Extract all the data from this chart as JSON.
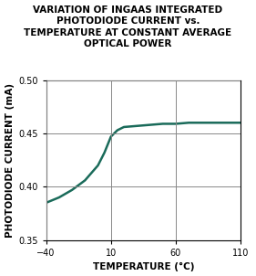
{
  "title_lines": [
    "VARIATION OF INGAAS INTEGRATED",
    "PHOTODIODE CURRENT vs.",
    "TEMPERATURE AT CONSTANT AVERAGE",
    "OPTICAL POWER"
  ],
  "xlabel": "TEMPERATURE (°C)",
  "ylabel": "PHOTODIODE CURRENT (mA)",
  "xlim": [
    -40,
    110
  ],
  "ylim": [
    0.35,
    0.5
  ],
  "xticks": [
    -40,
    10,
    60,
    110
  ],
  "yticks": [
    0.35,
    0.4,
    0.45,
    0.5
  ],
  "curve_color": "#1a6b5a",
  "curve_x": [
    -40,
    -30,
    -20,
    -10,
    0,
    5,
    10,
    15,
    20,
    30,
    40,
    50,
    60,
    70,
    80,
    90,
    100,
    110
  ],
  "curve_y": [
    0.385,
    0.39,
    0.397,
    0.406,
    0.42,
    0.432,
    0.447,
    0.453,
    0.456,
    0.457,
    0.458,
    0.459,
    0.459,
    0.46,
    0.46,
    0.46,
    0.46,
    0.46
  ],
  "title_fontsize": 7.5,
  "label_fontsize": 7.5,
  "tick_fontsize": 7,
  "background_color": "#ffffff",
  "grid_color": "#888888",
  "linewidth": 1.8
}
